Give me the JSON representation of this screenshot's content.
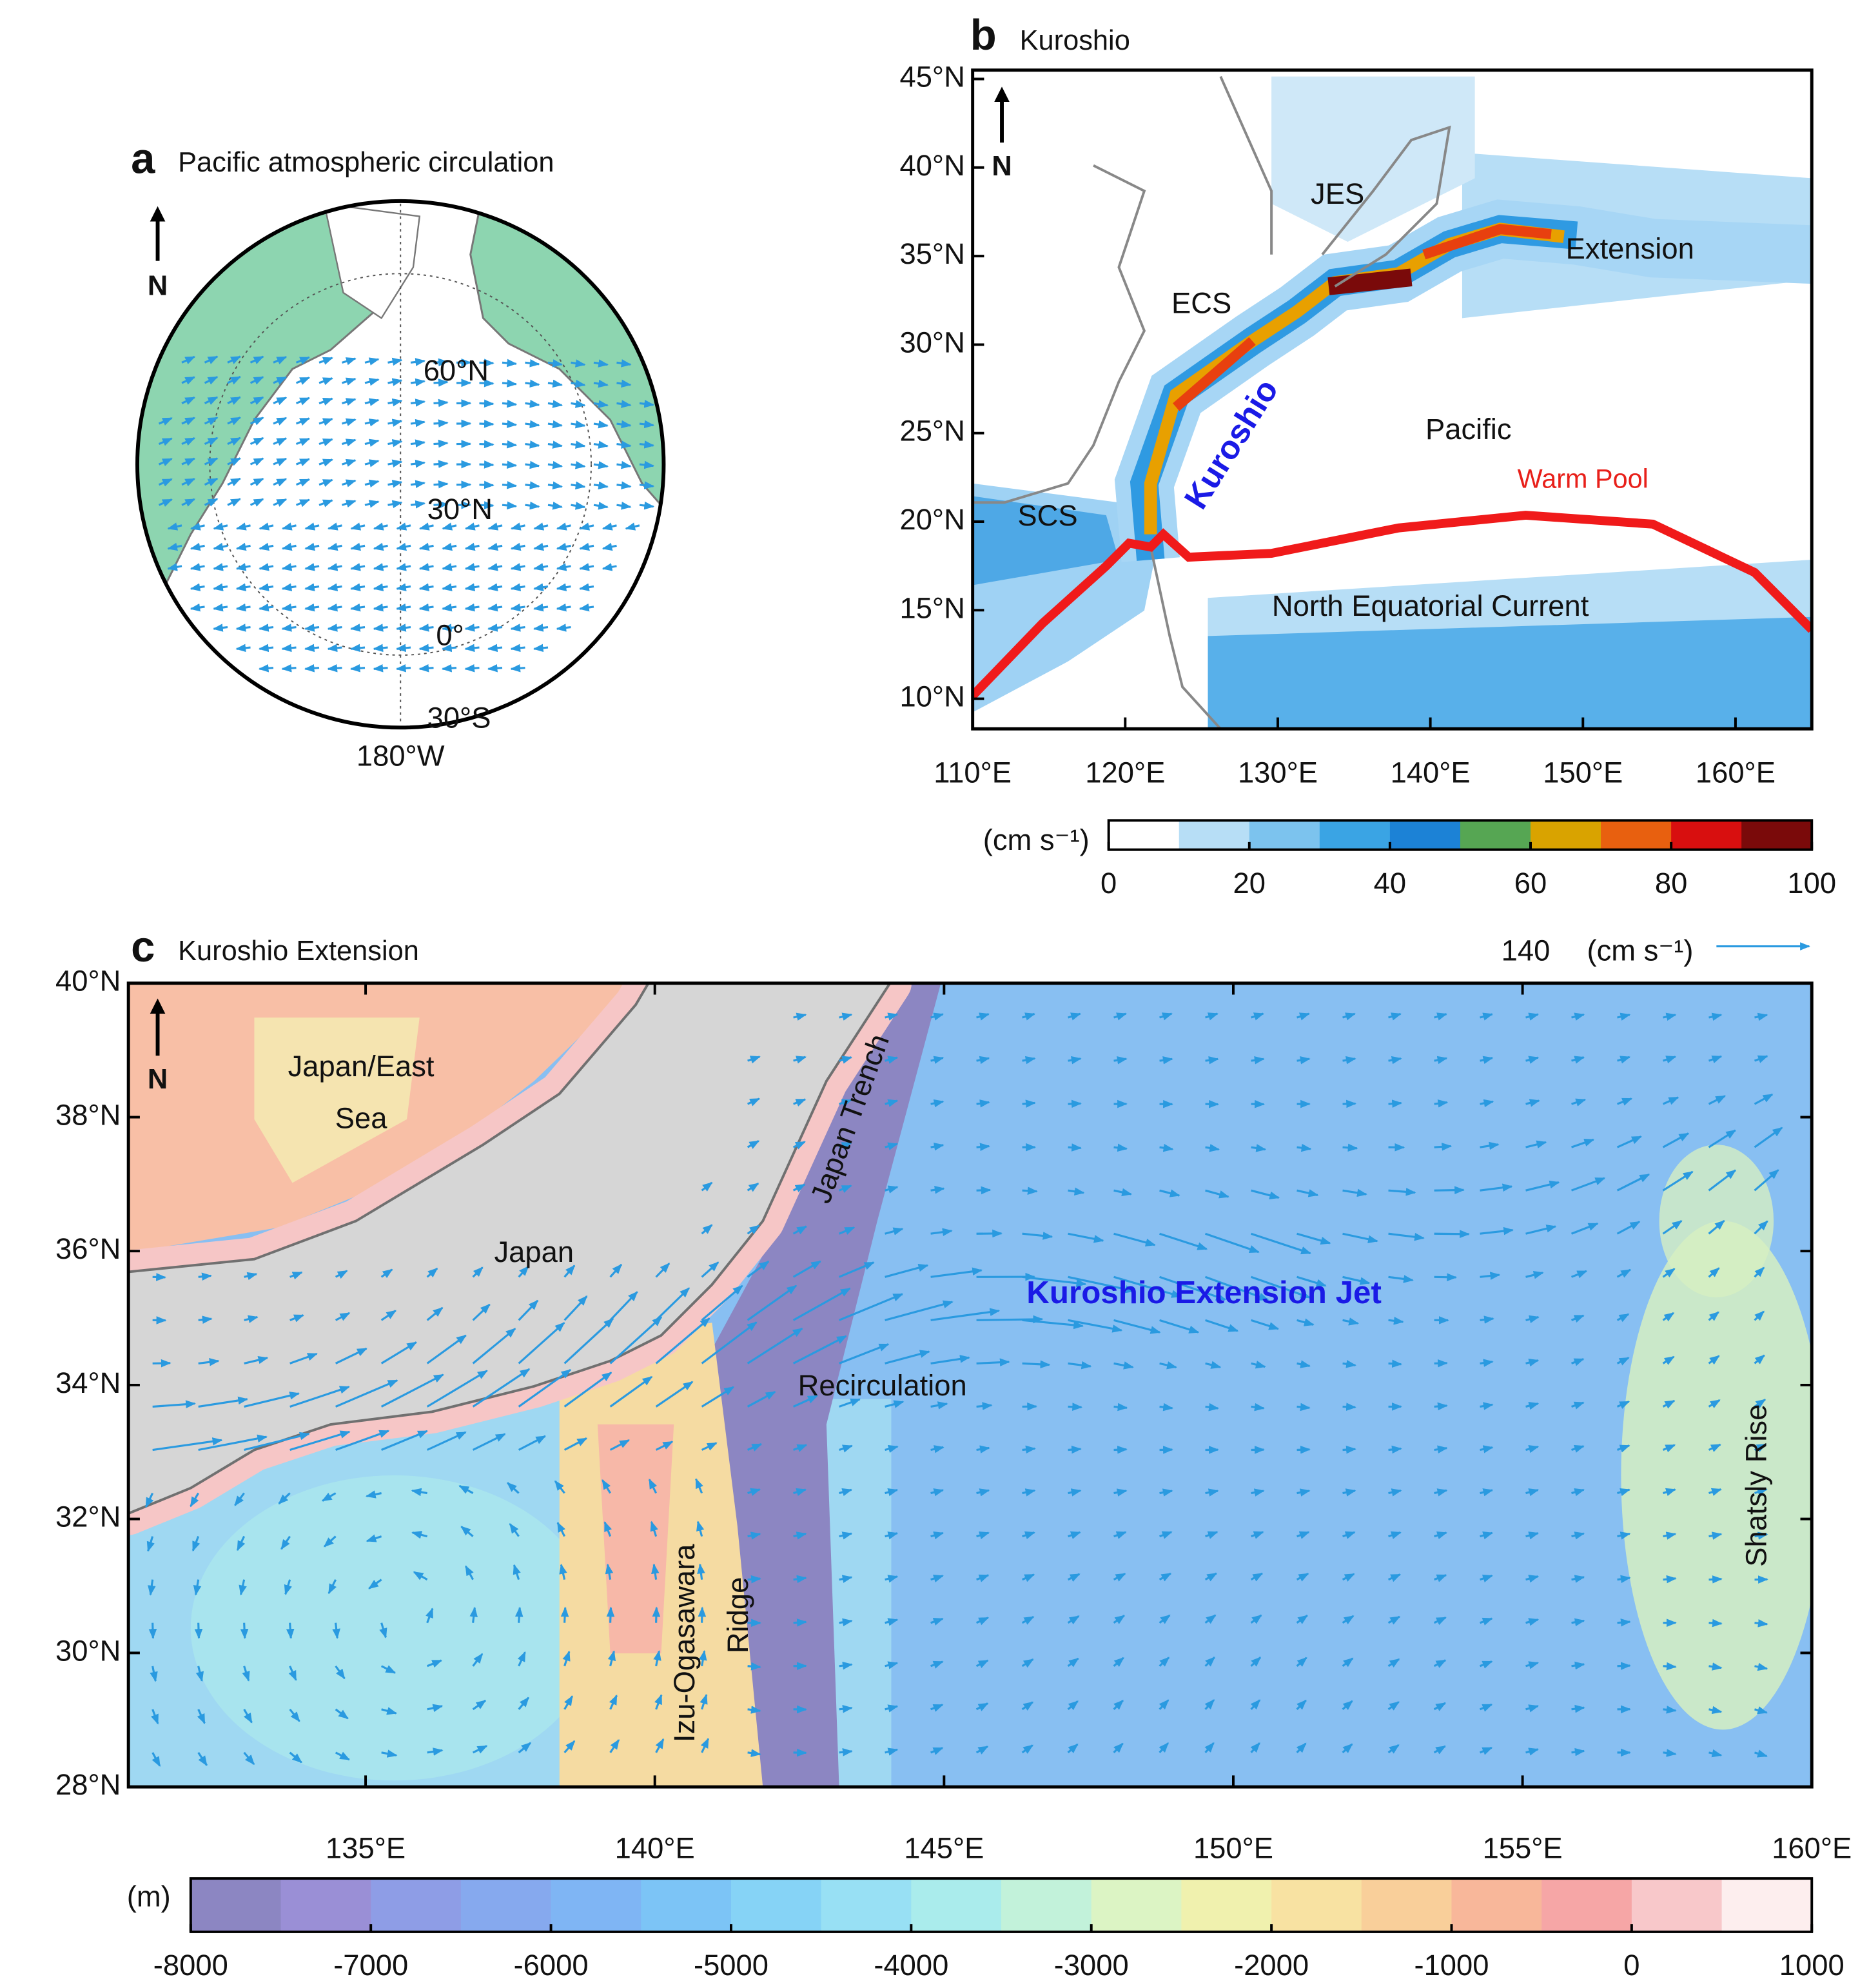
{
  "panels": {
    "a": {
      "label": "a",
      "title": "Pacific atmospheric circulation",
      "north": "N",
      "lat_labels": [
        "60°N",
        "30°N",
        "0°",
        "30°S"
      ],
      "lon_label": "180°W"
    },
    "b": {
      "label": "b",
      "title": "Kuroshio",
      "north": "N",
      "xlim": [
        110,
        165
      ],
      "ylim": [
        8.3,
        45.5
      ],
      "xticks": [
        {
          "value": 110,
          "label": "110°E"
        },
        {
          "value": 120,
          "label": "120°E"
        },
        {
          "value": 130,
          "label": "130°E"
        },
        {
          "value": 140,
          "label": "140°E"
        },
        {
          "value": 150,
          "label": "150°E"
        },
        {
          "value": 160,
          "label": "160°E"
        }
      ],
      "yticks": [
        {
          "value": 10,
          "label": "10°N"
        },
        {
          "value": 15,
          "label": "15°N"
        },
        {
          "value": 20,
          "label": "20°N"
        },
        {
          "value": 25,
          "label": "25°N"
        },
        {
          "value": 30,
          "label": "30°N"
        },
        {
          "value": 35,
          "label": "35°N"
        },
        {
          "value": 40,
          "label": "40°N"
        },
        {
          "value": 45,
          "label": "45°N"
        }
      ],
      "annotations": [
        "JES",
        "ECS",
        "Extension",
        "Kuroshio",
        "Pacific",
        "Warm Pool",
        "SCS",
        "North Equatorial Current"
      ],
      "colorbar": {
        "unit": "(cm s⁻¹)",
        "lim": [
          0,
          100
        ],
        "ticks": [
          0,
          20,
          40,
          60,
          80,
          100
        ],
        "colors": [
          "#ffffff",
          "#b7def6",
          "#7cc3ee",
          "#3aa4e4",
          "#1c82d6",
          "#56a653",
          "#d9a300",
          "#e8600f",
          "#d80f0f",
          "#7a0a0a"
        ]
      }
    },
    "c": {
      "label": "c",
      "title": "Kuroshio Extension",
      "north": "N",
      "xlim": [
        130.9,
        160
      ],
      "ylim": [
        28,
        40
      ],
      "xticks": [
        {
          "value": 135,
          "label": "135°E"
        },
        {
          "value": 140,
          "label": "140°E"
        },
        {
          "value": 145,
          "label": "145°E"
        },
        {
          "value": 150,
          "label": "150°E"
        },
        {
          "value": 155,
          "label": "155°E"
        },
        {
          "value": 160,
          "label": "160°E"
        }
      ],
      "yticks": [
        {
          "value": 28,
          "label": "28°N"
        },
        {
          "value": 30,
          "label": "30°N"
        },
        {
          "value": 32,
          "label": "32°N"
        },
        {
          "value": 34,
          "label": "34°N"
        },
        {
          "value": 36,
          "label": "36°N"
        },
        {
          "value": 38,
          "label": "38°N"
        },
        {
          "value": 40,
          "label": "40°N"
        }
      ],
      "reference_vector": {
        "value": 140,
        "unit": "(cm s⁻¹)"
      },
      "annotations": [
        "Japan/East",
        "Sea",
        "Japan",
        "Japan Trench",
        "Kuroshio Extension Jet",
        "Recirculation",
        "Izu-Ogasawara",
        "Ridge",
        "Shatsly Rise"
      ],
      "colorbar": {
        "unit": "(m)",
        "lim": [
          -8000,
          1000
        ],
        "ticks": [
          -8000,
          -7000,
          -6000,
          -5000,
          -4000,
          -3000,
          -2000,
          -1000,
          0,
          1000
        ],
        "colors": [
          "#8c86c2",
          "#9a8fd6",
          "#8e9de6",
          "#86a9ee",
          "#7fb5f4",
          "#7cc4f6",
          "#86d3f6",
          "#98e0f4",
          "#aaecec",
          "#c2f2da",
          "#dcf4c4",
          "#f0f1ae",
          "#f8e2a2",
          "#f9cf9a",
          "#f8b79a",
          "#f6a6a6",
          "#f8c8ca",
          "#fdeeee"
        ]
      }
    }
  }
}
